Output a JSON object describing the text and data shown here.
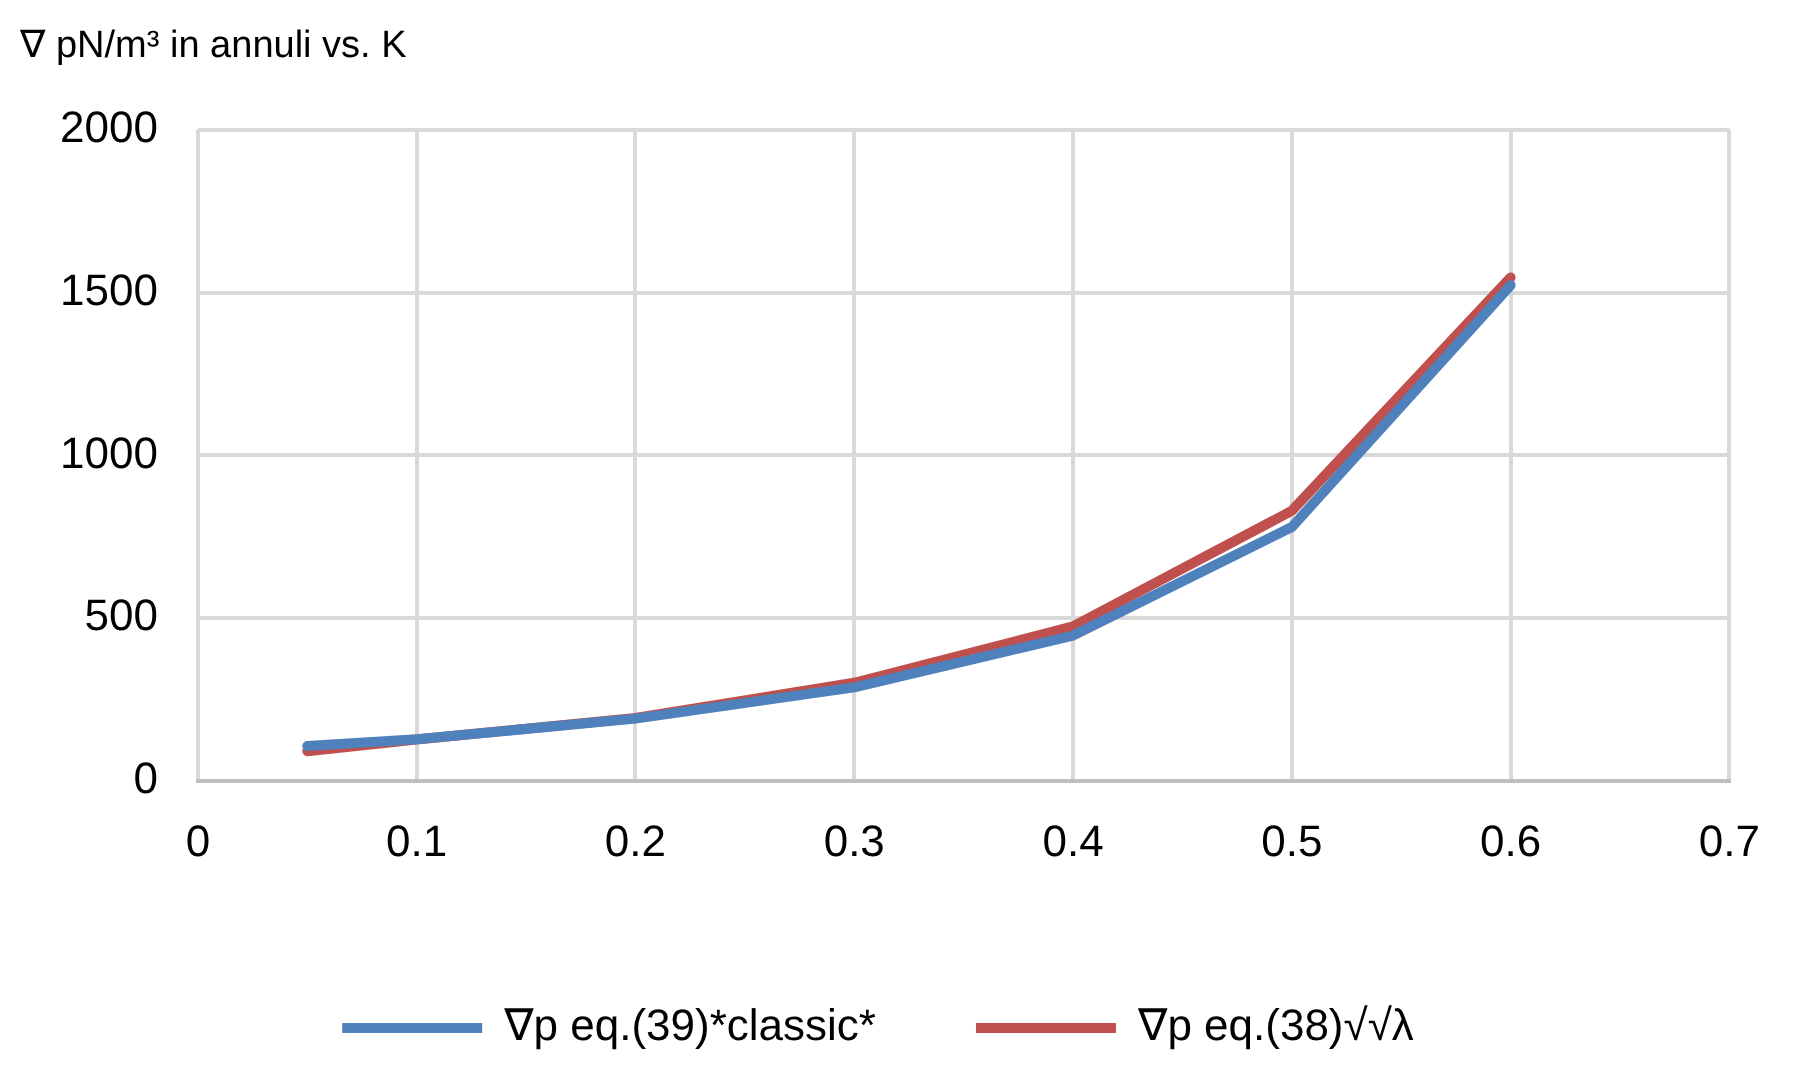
{
  "chart_data": {
    "type": "line",
    "title": "∇ pN/m³ in annuli vs. K",
    "x": [
      0.05,
      0.1,
      0.2,
      0.3,
      0.4,
      0.5,
      0.6
    ],
    "series": [
      {
        "name": "∇p eq.(39)*classic*",
        "color": "#4f81bd",
        "values": [
          108,
          129,
          192,
          288,
          447,
          780,
          1522
        ]
      },
      {
        "name": "∇p eq.(38)√√λ",
        "color": "#c0504d",
        "values": [
          92,
          128,
          194,
          302,
          475,
          830,
          1546
        ]
      }
    ],
    "xlim": [
      0,
      0.7
    ],
    "xticks": [
      0,
      0.1,
      0.2,
      0.3,
      0.4,
      0.5,
      0.6,
      0.7
    ],
    "ylim": [
      0,
      2000
    ],
    "yticks": [
      0,
      500,
      1000,
      1500,
      2000
    ],
    "grid": true,
    "legend": "bottom",
    "marker": "none",
    "line_style": "solid"
  }
}
